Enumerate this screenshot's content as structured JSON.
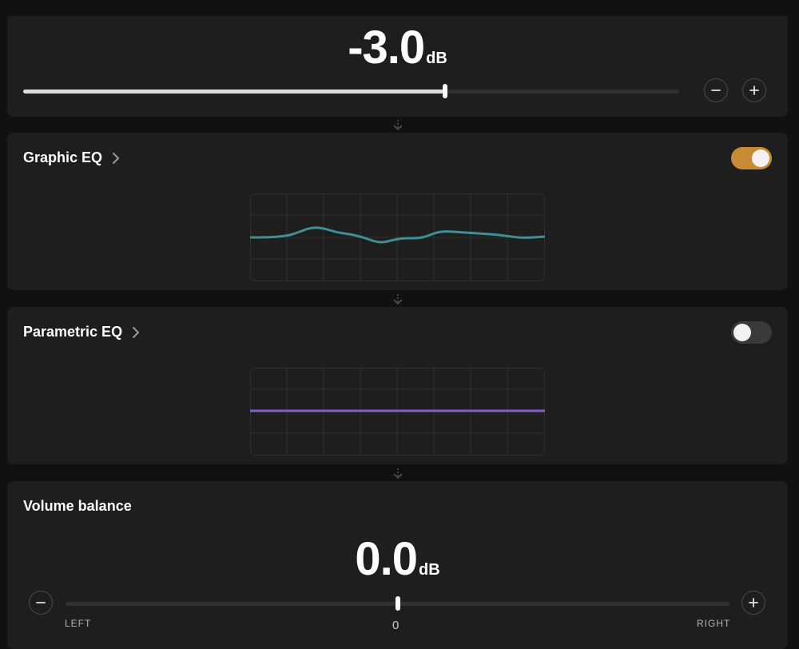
{
  "preamp": {
    "value": "-3.0",
    "unit": "dB",
    "level": 0.643
  },
  "graphic_eq": {
    "title": "Graphic EQ",
    "enabled": true,
    "curve_color": "#3f8f95"
  },
  "parametric_eq": {
    "title": "Parametric EQ",
    "enabled": false,
    "curve_color": "#8a5cc7"
  },
  "volume_balance": {
    "title": "Volume balance",
    "value": "0.0",
    "unit": "dB",
    "left_label": "LEFT",
    "right_label": "RIGHT",
    "center_label": "0",
    "position": 0.5
  },
  "colors": {
    "toggle_on": "#c98a34",
    "toggle_off": "#3a3a3a"
  },
  "icons": {
    "minus": "minus-icon",
    "plus": "plus-icon",
    "chevron": "chevron-right-icon",
    "connector": "arrow-down-dotted-icon"
  }
}
